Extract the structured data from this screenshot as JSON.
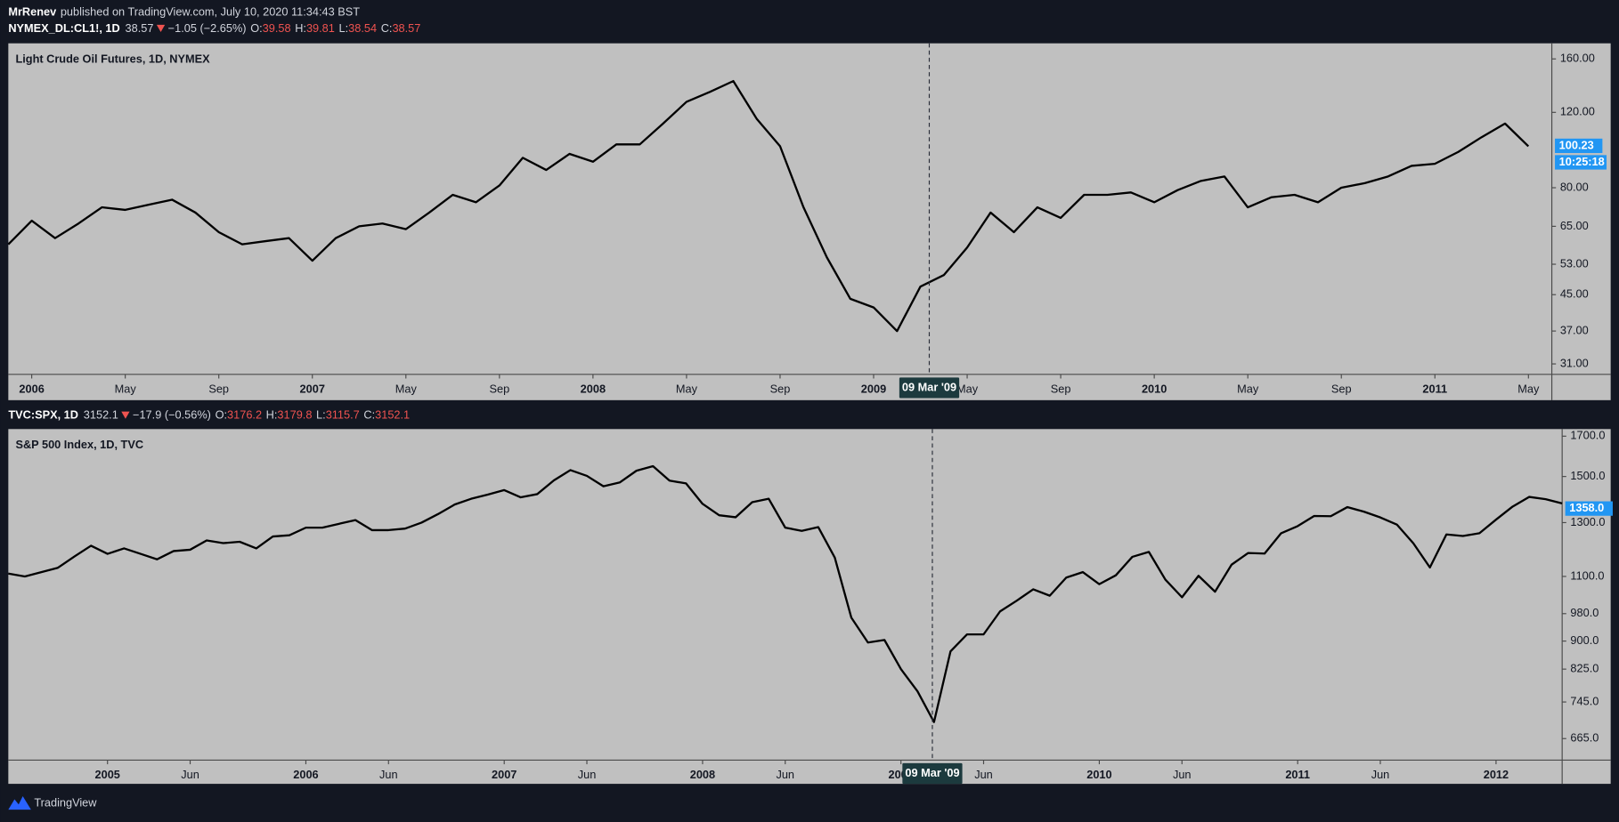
{
  "header": {
    "author": "MrRenev",
    "published": "published on TradingView.com, July 10, 2020 11:34:43 BST"
  },
  "footer": {
    "brand": "TradingView"
  },
  "chart_data": [
    {
      "type": "line",
      "symbol": "NYMEX_DL:CL1!, 1D",
      "last": 38.57,
      "change": "−1.05 (−2.65%)",
      "ohlc": [
        {
          "label": "O:",
          "value": 39.58
        },
        {
          "label": "H:",
          "value": 39.81
        },
        {
          "label": "L:",
          "value": 38.54
        },
        {
          "label": "C:",
          "value": 38.57
        }
      ],
      "title": "Light Crude Oil Futures, 1D, NYMEX",
      "price_label": 100.23,
      "countdown": "10:25:18",
      "crosshair_label": "09 Mar '09",
      "log_y": true,
      "grid": false,
      "color": "#000000",
      "xlim": [
        "2005-12",
        "2011-06"
      ],
      "xticks": [
        {
          "value": "2006-01",
          "label": "2006"
        },
        {
          "value": "2006-05",
          "label": "May"
        },
        {
          "value": "2006-09",
          "label": "Sep"
        },
        {
          "value": "2007-01",
          "label": "2007"
        },
        {
          "value": "2007-05",
          "label": "May"
        },
        {
          "value": "2007-09",
          "label": "Sep"
        },
        {
          "value": "2008-01",
          "label": "2008"
        },
        {
          "value": "2008-05",
          "label": "May"
        },
        {
          "value": "2008-09",
          "label": "Sep"
        },
        {
          "value": "2009-01",
          "label": "2009"
        },
        {
          "value": "2009-05",
          "label": "May"
        },
        {
          "value": "2009-09",
          "label": "Sep"
        },
        {
          "value": "2010-01",
          "label": "2010"
        },
        {
          "value": "2010-05",
          "label": "May"
        },
        {
          "value": "2010-09",
          "label": "Sep"
        },
        {
          "value": "2011-01",
          "label": "2011"
        },
        {
          "value": "2011-05",
          "label": "May"
        }
      ],
      "ylim": [
        29.3,
        174
      ],
      "yticks": [
        {
          "value": 31,
          "label": "31.00"
        },
        {
          "value": 37,
          "label": "37.00"
        },
        {
          "value": 45,
          "label": "45.00"
        },
        {
          "value": 53,
          "label": "53.00"
        },
        {
          "value": 65,
          "label": "65.00"
        },
        {
          "value": 80,
          "label": "80.00"
        },
        {
          "value": 120,
          "label": "120.00"
        },
        {
          "value": 160,
          "label": "160.00"
        }
      ],
      "x": [
        "2005-12",
        "2006-01",
        "2006-02",
        "2006-03",
        "2006-04",
        "2006-05",
        "2006-06",
        "2006-07",
        "2006-08",
        "2006-09",
        "2006-10",
        "2006-11",
        "2006-12",
        "2007-01",
        "2007-02",
        "2007-03",
        "2007-04",
        "2007-05",
        "2007-06",
        "2007-07",
        "2007-08",
        "2007-09",
        "2007-10",
        "2007-11",
        "2007-12",
        "2008-01",
        "2008-02",
        "2008-03",
        "2008-04",
        "2008-05",
        "2008-06",
        "2008-07",
        "2008-08",
        "2008-09",
        "2008-10",
        "2008-11",
        "2008-12",
        "2009-01",
        "2009-02",
        "2009-03",
        "2009-04",
        "2009-05",
        "2009-06",
        "2009-07",
        "2009-08",
        "2009-09",
        "2009-10",
        "2009-11",
        "2009-12",
        "2010-01",
        "2010-02",
        "2010-03",
        "2010-04",
        "2010-05",
        "2010-06",
        "2010-07",
        "2010-08",
        "2010-09",
        "2010-10",
        "2010-11",
        "2010-12",
        "2011-01",
        "2011-02",
        "2011-03",
        "2011-04",
        "2011-05"
      ],
      "values": [
        59,
        67,
        61,
        66,
        72,
        71,
        73,
        75,
        70,
        63,
        59,
        60,
        61,
        54,
        61,
        65,
        66,
        64,
        70,
        77,
        74,
        81,
        94,
        88,
        96,
        92,
        101,
        101,
        113,
        127,
        134,
        142,
        116,
        100,
        72,
        55,
        44,
        42,
        37,
        47,
        50,
        58,
        70,
        63,
        72,
        68,
        77,
        77,
        78,
        74,
        79,
        83,
        85,
        72,
        76,
        77,
        74,
        80,
        82,
        85,
        90,
        91,
        97,
        105,
        113,
        100
      ]
    },
    {
      "type": "line",
      "symbol": "TVC:SPX, 1D",
      "last": 3152.1,
      "change": "−17.9 (−0.56%)",
      "ohlc": [
        {
          "label": "O:",
          "value": 3176.2
        },
        {
          "label": "H:",
          "value": 3179.8
        },
        {
          "label": "L:",
          "value": 3115.7
        },
        {
          "label": "C:",
          "value": 3152.1
        }
      ],
      "title": "S&P 500 Index, 1D, TVC",
      "price_label": {
        "value": 1358,
        "label": "1358.0"
      },
      "crosshair_label": "09 Mar '09",
      "log_y": true,
      "grid": false,
      "color": "#000000",
      "xlim": [
        "2004-07",
        "2012-05"
      ],
      "xticks": [
        {
          "value": "2005-01",
          "label": "2005"
        },
        {
          "value": "2005-06",
          "label": "Jun"
        },
        {
          "value": "2006-01",
          "label": "2006"
        },
        {
          "value": "2006-06",
          "label": "Jun"
        },
        {
          "value": "2007-01",
          "label": "2007"
        },
        {
          "value": "2007-06",
          "label": "Jun"
        },
        {
          "value": "2008-01",
          "label": "2008"
        },
        {
          "value": "2008-06",
          "label": "Jun"
        },
        {
          "value": "2009-01",
          "label": "2009"
        },
        {
          "value": "2009-06",
          "label": "Jun"
        },
        {
          "value": "2010-01",
          "label": "2010"
        },
        {
          "value": "2010-06",
          "label": "Jun"
        },
        {
          "value": "2011-01",
          "label": "2011"
        },
        {
          "value": "2011-06",
          "label": "Jun"
        },
        {
          "value": "2012-01",
          "label": "2012"
        }
      ],
      "ylim": [
        622,
        1738
      ],
      "yticks": [
        {
          "value": 665,
          "label": "665.0"
        },
        {
          "value": 745,
          "label": "745.0"
        },
        {
          "value": 825,
          "label": "825.0"
        },
        {
          "value": 900,
          "label": "900.0"
        },
        {
          "value": 980,
          "label": "980.0"
        },
        {
          "value": 1100,
          "label": "1100.0"
        },
        {
          "value": 1300,
          "label": "1300.0"
        },
        {
          "value": 1500,
          "label": "1500.0"
        },
        {
          "value": 1700,
          "label": "1700.0"
        }
      ],
      "x": [
        "2004-07",
        "2004-08",
        "2004-09",
        "2004-10",
        "2004-11",
        "2004-12",
        "2005-01",
        "2005-02",
        "2005-03",
        "2005-04",
        "2005-05",
        "2005-06",
        "2005-07",
        "2005-08",
        "2005-09",
        "2005-10",
        "2005-11",
        "2005-12",
        "2006-01",
        "2006-02",
        "2006-03",
        "2006-04",
        "2006-05",
        "2006-06",
        "2006-07",
        "2006-08",
        "2006-09",
        "2006-10",
        "2006-11",
        "2006-12",
        "2007-01",
        "2007-02",
        "2007-03",
        "2007-04",
        "2007-05",
        "2007-06",
        "2007-07",
        "2007-08",
        "2007-09",
        "2007-10",
        "2007-11",
        "2007-12",
        "2008-01",
        "2008-02",
        "2008-03",
        "2008-04",
        "2008-05",
        "2008-06",
        "2008-07",
        "2008-08",
        "2008-09",
        "2008-10",
        "2008-11",
        "2008-12",
        "2009-01",
        "2009-02",
        "2009-03",
        "2009-04",
        "2009-05",
        "2009-06",
        "2009-07",
        "2009-08",
        "2009-09",
        "2009-10",
        "2009-11",
        "2009-12",
        "2010-01",
        "2010-02",
        "2010-03",
        "2010-04",
        "2010-05",
        "2010-06",
        "2010-07",
        "2010-08",
        "2010-09",
        "2010-10",
        "2010-11",
        "2010-12",
        "2011-01",
        "2011-02",
        "2011-03",
        "2011-04",
        "2011-05",
        "2011-06",
        "2011-07",
        "2011-08",
        "2011-09",
        "2011-10",
        "2011-11",
        "2011-12",
        "2012-01",
        "2012-02",
        "2012-03",
        "2012-04",
        "2012-05"
      ],
      "values": [
        1110,
        1100,
        1115,
        1130,
        1170,
        1210,
        1180,
        1200,
        1180,
        1160,
        1190,
        1195,
        1230,
        1220,
        1225,
        1200,
        1245,
        1250,
        1280,
        1280,
        1295,
        1310,
        1270,
        1270,
        1276,
        1300,
        1335,
        1375,
        1400,
        1418,
        1438,
        1406,
        1420,
        1482,
        1530,
        1503,
        1455,
        1473,
        1527,
        1549,
        1481,
        1468,
        1378,
        1330,
        1322,
        1385,
        1400,
        1280,
        1267,
        1282,
        1166,
        968,
        896,
        903,
        825,
        770,
        700,
        872,
        919,
        919,
        987,
        1020,
        1057,
        1036,
        1096,
        1115,
        1074,
        1104,
        1169,
        1187,
        1089,
        1031,
        1102,
        1049,
        1141,
        1183,
        1181,
        1258,
        1286,
        1327,
        1326,
        1364,
        1345,
        1321,
        1292,
        1219,
        1131,
        1253,
        1247,
        1258,
        1312,
        1366,
        1408,
        1398,
        1380
      ]
    }
  ]
}
